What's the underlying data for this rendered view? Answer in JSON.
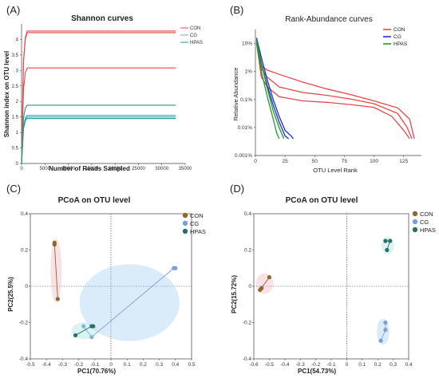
{
  "panel_labels": [
    "(A)",
    "(B)",
    "(C)",
    "(D)"
  ],
  "colors": {
    "CON_line": "#e8474a",
    "CG_line": "#1f2fd6",
    "HPAS_line": "#1fa07a",
    "HPAS_line_b": "#1e9a2a",
    "CON_point": "#8b6a2c",
    "CG_point": "#7f9ed6",
    "HPAS_point": "#2e6e66"
  },
  "chart_data": [
    {
      "type": "line",
      "id": "A",
      "title": "Shannon curves",
      "xlabel": "Number of Reads Sampled",
      "ylabel": "Shannon index on OTU level",
      "xlim": [
        0,
        35000
      ],
      "ylim": [
        0,
        4.5
      ],
      "xticks": [
        0,
        5000,
        10000,
        15000,
        20000,
        25000,
        30000,
        35000
      ],
      "yticks": [
        0,
        0.5,
        1,
        1.5,
        2,
        2.5,
        3,
        3.5,
        4
      ],
      "legend": [
        "CON",
        "CG",
        "HPAS"
      ],
      "legend_position": "top-right",
      "series": [
        {
          "name": "CON",
          "group": "CON",
          "plateau": 4.27,
          "x_end": 33000
        },
        {
          "name": "CON",
          "group": "CON",
          "plateau": 4.22,
          "x_end": 33000
        },
        {
          "name": "CON",
          "group": "CON",
          "plateau": 3.08,
          "x_end": 33000
        },
        {
          "name": "CG",
          "group": "CG",
          "plateau": 1.55,
          "x_end": 33000
        },
        {
          "name": "CG",
          "group": "CG",
          "plateau": 1.5,
          "x_end": 33000
        },
        {
          "name": "HPAS",
          "group": "HPAS",
          "plateau": 1.88,
          "x_end": 33000
        },
        {
          "name": "HPAS",
          "group": "HPAS",
          "plateau": 1.45,
          "x_end": 33000
        }
      ]
    },
    {
      "type": "line",
      "id": "B",
      "title": "Rank-Abundance curves",
      "xlabel": "OTU Level Rank",
      "ylabel": "Relative Abundance",
      "xlim": [
        0,
        140
      ],
      "ylim_log10": [
        -3,
        1.5
      ],
      "xticks": [
        0,
        25,
        50,
        75,
        100,
        125
      ],
      "ytick_labels": [
        "10%",
        "1%",
        "0.1%",
        "0.01%",
        "0.001%"
      ],
      "ytick_values_log10": [
        1,
        0,
        -1,
        -2,
        -3
      ],
      "legend": [
        "CON",
        "CG",
        "HPAS"
      ],
      "legend_position": "top-right",
      "series": [
        {
          "name": "CON",
          "group": "CON",
          "points": [
            [
              1,
              1.2
            ],
            [
              5,
              0.2
            ],
            [
              10,
              0.05
            ],
            [
              20,
              -0.1
            ],
            [
              40,
              -0.38
            ],
            [
              60,
              -0.62
            ],
            [
              80,
              -0.82
            ],
            [
              100,
              -1.05
            ],
            [
              120,
              -1.3
            ],
            [
              130,
              -1.7
            ],
            [
              134,
              -2.4
            ]
          ]
        },
        {
          "name": "CON",
          "group": "CON",
          "points": [
            [
              1,
              1.1
            ],
            [
              5,
              0.1
            ],
            [
              10,
              -0.2
            ],
            [
              20,
              -0.55
            ],
            [
              40,
              -0.75
            ],
            [
              60,
              -0.85
            ],
            [
              80,
              -0.98
            ],
            [
              100,
              -1.15
            ],
            [
              120,
              -1.5
            ],
            [
              128,
              -2.0
            ],
            [
              132,
              -2.4
            ]
          ]
        },
        {
          "name": "CON",
          "group": "CON",
          "points": [
            [
              1,
              1.0
            ],
            [
              5,
              -0.2
            ],
            [
              10,
              -0.55
            ],
            [
              20,
              -0.9
            ],
            [
              40,
              -1.05
            ],
            [
              60,
              -1.1
            ],
            [
              80,
              -1.18
            ],
            [
              100,
              -1.28
            ],
            [
              115,
              -1.6
            ],
            [
              125,
              -2.1
            ],
            [
              130,
              -2.4
            ]
          ]
        },
        {
          "name": "CG",
          "group": "CG",
          "points": [
            [
              1,
              1.2
            ],
            [
              5,
              0.5
            ],
            [
              10,
              -0.3
            ],
            [
              15,
              -1.0
            ],
            [
              20,
              -1.6
            ],
            [
              25,
              -2.1
            ],
            [
              30,
              -2.3
            ],
            [
              32,
              -2.4
            ]
          ]
        },
        {
          "name": "CG",
          "group": "CG",
          "points": [
            [
              1,
              1.1
            ],
            [
              5,
              0.3
            ],
            [
              10,
              -0.5
            ],
            [
              15,
              -1.2
            ],
            [
              20,
              -1.8
            ],
            [
              25,
              -2.3
            ],
            [
              28,
              -2.4
            ]
          ]
        },
        {
          "name": "HPAS",
          "group": "HPAS",
          "points": [
            [
              1,
              1.15
            ],
            [
              5,
              0.3
            ],
            [
              10,
              -0.6
            ],
            [
              15,
              -1.4
            ],
            [
              20,
              -2.0
            ],
            [
              24,
              -2.4
            ]
          ]
        },
        {
          "name": "HPAS",
          "group": "HPAS",
          "points": [
            [
              1,
              1.0
            ],
            [
              5,
              0.0
            ],
            [
              10,
              -0.9
            ],
            [
              15,
              -1.7
            ],
            [
              18,
              -2.2
            ],
            [
              20,
              -2.4
            ]
          ]
        }
      ]
    },
    {
      "type": "scatter",
      "id": "C",
      "title": "PCoA on OTU level",
      "xlabel": "PC1(70.76%)",
      "ylabel": "PC2(25.5%)",
      "xlim": [
        -0.5,
        0.5
      ],
      "ylim": [
        -0.4,
        0.4
      ],
      "xticks": [
        -0.5,
        -0.4,
        -0.3,
        -0.2,
        -0.1,
        0,
        0.1,
        0.2,
        0.3,
        0.4,
        0.5
      ],
      "yticks": [
        -0.4,
        -0.2,
        0,
        0.2,
        0.4
      ],
      "legend": [
        "CON",
        "CG",
        "HPAS"
      ],
      "legend_position": "top-right",
      "series": [
        {
          "name": "CON",
          "points": [
            [
              -0.35,
              0.24
            ],
            [
              -0.35,
              0.23
            ],
            [
              -0.33,
              -0.07
            ]
          ]
        },
        {
          "name": "CG",
          "points": [
            [
              0.4,
              0.1
            ],
            [
              0.39,
              0.1
            ],
            [
              -0.12,
              -0.28
            ],
            [
              -0.17,
              -0.22
            ]
          ]
        },
        {
          "name": "HPAS",
          "points": [
            [
              -0.11,
              -0.22
            ],
            [
              -0.12,
              -0.22
            ],
            [
              -0.22,
              -0.27
            ]
          ]
        }
      ]
    },
    {
      "type": "scatter",
      "id": "D",
      "title": "PCoA on OTU level",
      "xlabel": "PC1(54.73%)",
      "ylabel": "PC2(15.72%)",
      "xlim": [
        -0.6,
        0.4
      ],
      "ylim": [
        -0.4,
        0.4
      ],
      "xticks": [
        -0.6,
        -0.5,
        -0.4,
        -0.3,
        -0.2,
        -0.1,
        0,
        0.1,
        0.2,
        0.3,
        0.4
      ],
      "yticks": [
        -0.4,
        -0.2,
        0,
        0.2,
        0.4
      ],
      "legend": [
        "CON",
        "CG",
        "HPAS"
      ],
      "legend_position": "top-right",
      "series": [
        {
          "name": "CON",
          "points": [
            [
              -0.5,
              0.05
            ],
            [
              -0.56,
              -0.02
            ],
            [
              -0.55,
              -0.01
            ]
          ]
        },
        {
          "name": "CG",
          "points": [
            [
              0.25,
              -0.2
            ],
            [
              0.25,
              -0.24
            ],
            [
              0.22,
              -0.3
            ]
          ]
        },
        {
          "name": "HPAS",
          "points": [
            [
              0.25,
              0.25
            ],
            [
              0.28,
              0.25
            ],
            [
              0.26,
              0.2
            ]
          ]
        }
      ]
    }
  ]
}
